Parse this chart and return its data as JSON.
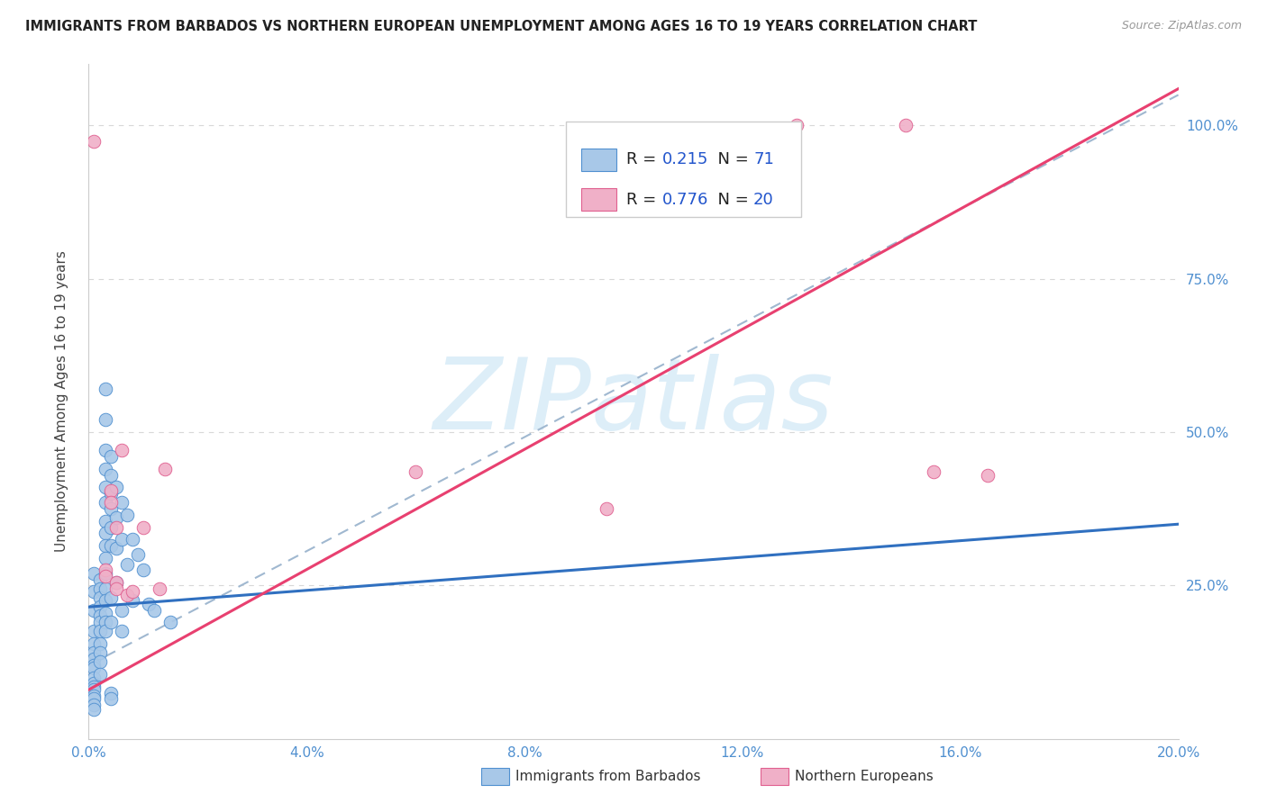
{
  "title": "IMMIGRANTS FROM BARBADOS VS NORTHERN EUROPEAN UNEMPLOYMENT AMONG AGES 16 TO 19 YEARS CORRELATION CHART",
  "source": "Source: ZipAtlas.com",
  "ylabel": "Unemployment Among Ages 16 to 19 years",
  "xlim": [
    0.0,
    0.2
  ],
  "ylim": [
    0.0,
    1.1
  ],
  "xticks": [
    0.0,
    0.04,
    0.08,
    0.12,
    0.16,
    0.2
  ],
  "yticks": [
    0.0,
    0.25,
    0.5,
    0.75,
    1.0
  ],
  "R_blue": 0.215,
  "N_blue": 71,
  "R_pink": 0.776,
  "N_pink": 20,
  "blue_fill": "#a8c8e8",
  "blue_edge": "#5090d0",
  "pink_fill": "#f0b0c8",
  "pink_edge": "#e06090",
  "blue_line": "#3070c0",
  "pink_line": "#e8406080",
  "dash_line": "#a0b8d0",
  "watermark_color": "#ddeef8",
  "legend_text_color": "#222222",
  "legend_value_color": "#2255cc",
  "tick_color": "#5090d0",
  "ylabel_color": "#444444",
  "grid_color": "#d8d8d8",
  "blue_dots": [
    [
      0.001,
      0.21
    ],
    [
      0.001,
      0.175
    ],
    [
      0.001,
      0.155
    ],
    [
      0.001,
      0.14
    ],
    [
      0.001,
      0.13
    ],
    [
      0.001,
      0.12
    ],
    [
      0.001,
      0.115
    ],
    [
      0.001,
      0.1
    ],
    [
      0.001,
      0.09
    ],
    [
      0.001,
      0.085
    ],
    [
      0.001,
      0.08
    ],
    [
      0.001,
      0.07
    ],
    [
      0.001,
      0.065
    ],
    [
      0.001,
      0.055
    ],
    [
      0.001,
      0.048
    ],
    [
      0.001,
      0.27
    ],
    [
      0.001,
      0.24
    ],
    [
      0.002,
      0.26
    ],
    [
      0.002,
      0.245
    ],
    [
      0.002,
      0.23
    ],
    [
      0.002,
      0.215
    ],
    [
      0.002,
      0.2
    ],
    [
      0.002,
      0.19
    ],
    [
      0.002,
      0.175
    ],
    [
      0.002,
      0.155
    ],
    [
      0.002,
      0.14
    ],
    [
      0.002,
      0.125
    ],
    [
      0.002,
      0.105
    ],
    [
      0.003,
      0.57
    ],
    [
      0.003,
      0.52
    ],
    [
      0.003,
      0.47
    ],
    [
      0.003,
      0.44
    ],
    [
      0.003,
      0.41
    ],
    [
      0.003,
      0.385
    ],
    [
      0.003,
      0.355
    ],
    [
      0.003,
      0.335
    ],
    [
      0.003,
      0.315
    ],
    [
      0.003,
      0.295
    ],
    [
      0.003,
      0.27
    ],
    [
      0.003,
      0.245
    ],
    [
      0.003,
      0.225
    ],
    [
      0.003,
      0.205
    ],
    [
      0.003,
      0.19
    ],
    [
      0.003,
      0.175
    ],
    [
      0.004,
      0.46
    ],
    [
      0.004,
      0.43
    ],
    [
      0.004,
      0.4
    ],
    [
      0.004,
      0.375
    ],
    [
      0.004,
      0.345
    ],
    [
      0.004,
      0.315
    ],
    [
      0.004,
      0.23
    ],
    [
      0.004,
      0.19
    ],
    [
      0.004,
      0.075
    ],
    [
      0.004,
      0.065
    ],
    [
      0.005,
      0.41
    ],
    [
      0.005,
      0.36
    ],
    [
      0.005,
      0.31
    ],
    [
      0.005,
      0.255
    ],
    [
      0.006,
      0.385
    ],
    [
      0.006,
      0.325
    ],
    [
      0.006,
      0.21
    ],
    [
      0.006,
      0.175
    ],
    [
      0.007,
      0.365
    ],
    [
      0.007,
      0.285
    ],
    [
      0.008,
      0.325
    ],
    [
      0.008,
      0.225
    ],
    [
      0.009,
      0.3
    ],
    [
      0.01,
      0.275
    ],
    [
      0.011,
      0.22
    ],
    [
      0.012,
      0.21
    ],
    [
      0.015,
      0.19
    ]
  ],
  "pink_dots": [
    [
      0.001,
      0.975
    ],
    [
      0.003,
      0.275
    ],
    [
      0.003,
      0.265
    ],
    [
      0.004,
      0.405
    ],
    [
      0.004,
      0.385
    ],
    [
      0.005,
      0.345
    ],
    [
      0.005,
      0.255
    ],
    [
      0.005,
      0.245
    ],
    [
      0.006,
      0.47
    ],
    [
      0.007,
      0.235
    ],
    [
      0.008,
      0.24
    ],
    [
      0.01,
      0.345
    ],
    [
      0.013,
      0.245
    ],
    [
      0.014,
      0.44
    ],
    [
      0.06,
      0.435
    ],
    [
      0.095,
      0.375
    ],
    [
      0.13,
      1.0
    ],
    [
      0.15,
      1.0
    ],
    [
      0.155,
      0.435
    ],
    [
      0.165,
      0.43
    ]
  ],
  "blue_trend_x": [
    0.0,
    0.2
  ],
  "blue_trend_y": [
    0.215,
    0.35
  ],
  "pink_trend_x": [
    0.0,
    0.2
  ],
  "pink_trend_y": [
    0.08,
    1.06
  ],
  "dash_trend_x": [
    0.0,
    0.2
  ],
  "dash_trend_y": [
    0.12,
    1.05
  ]
}
